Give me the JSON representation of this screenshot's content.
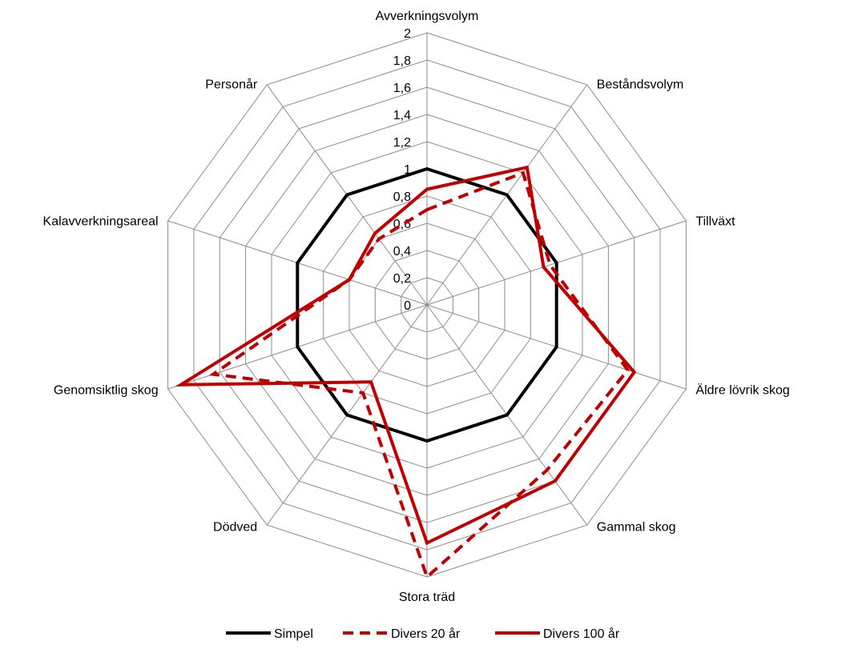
{
  "chart_data": {
    "type": "radar",
    "title": "",
    "categories": [
      "Avverkningsvolym",
      "Beståndsvolym",
      "Tillväxt",
      "Äldre lövrik skog",
      "Gammal skog",
      "Stora träd",
      "Dödved",
      "Genomsiktlig skog",
      "Kalavverkningsareal",
      "Personår"
    ],
    "rlim": [
      0,
      2
    ],
    "ticks": [
      "0",
      "0,2",
      "0,4",
      "0,6",
      "0,8",
      "1",
      "1,2",
      "1,4",
      "1,6",
      "1,8",
      "2"
    ],
    "tick_values": [
      0,
      0.2,
      0.4,
      0.6,
      0.8,
      1.0,
      1.2,
      1.4,
      1.6,
      1.8,
      2.0
    ],
    "grid": true,
    "legend_position": "bottom",
    "series": [
      {
        "name": "Simpel",
        "color": "#000000",
        "style": "solid",
        "values": [
          1,
          1,
          1,
          1,
          1,
          1,
          1,
          1,
          1,
          1
        ]
      },
      {
        "name": "Divers 20 år",
        "color": "#c00000",
        "style": "dashed",
        "values": [
          0.7,
          1.2,
          0.95,
          1.55,
          1.5,
          2.0,
          0.8,
          1.65,
          0.6,
          0.6
        ]
      },
      {
        "name": "Divers 100 år",
        "color": "#c00000",
        "style": "solid",
        "values": [
          0.85,
          1.25,
          0.9,
          1.6,
          1.6,
          1.75,
          0.7,
          1.9,
          0.6,
          0.65
        ]
      }
    ]
  }
}
